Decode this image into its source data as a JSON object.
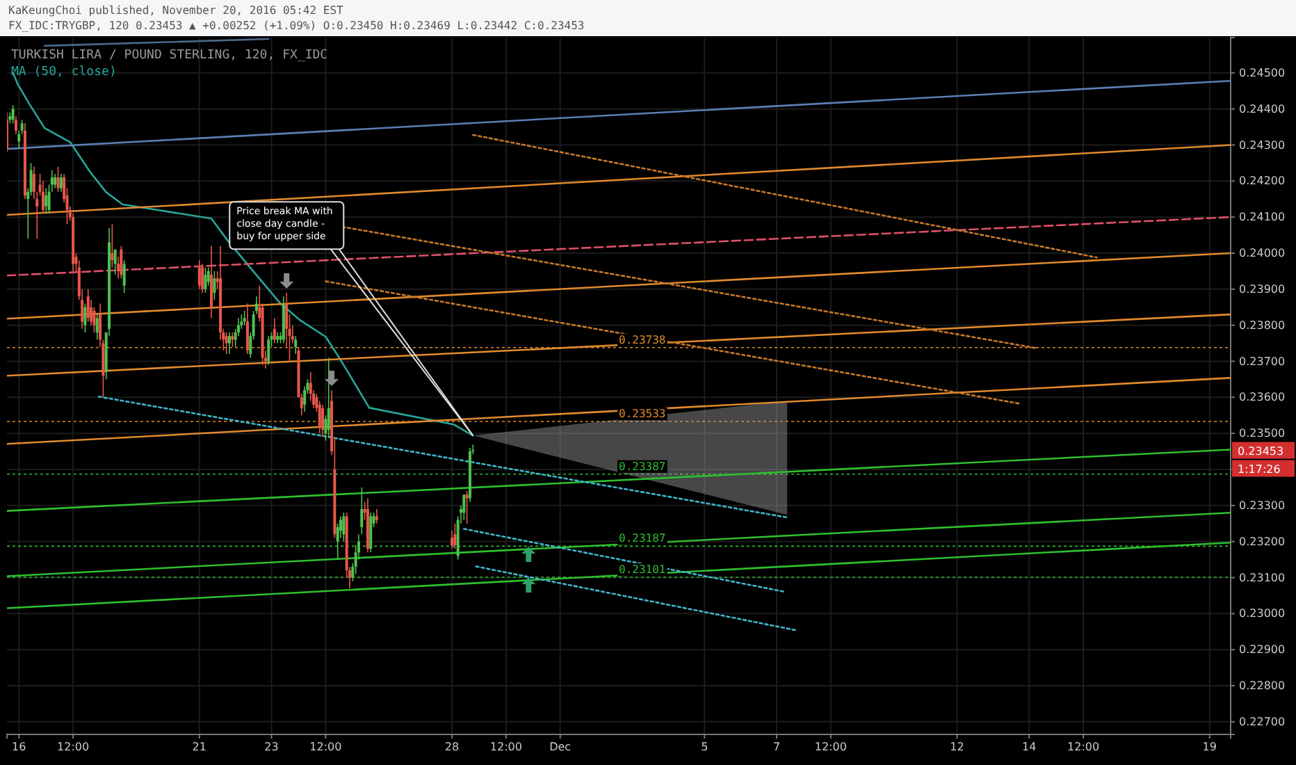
{
  "chart_data": {
    "type": "candlestick",
    "title": "TURKISH LIRA / POUND STERLING, 120, FX_IDC",
    "annotations": [
      "KaKeungChoi published, November 20, 2016 05:42 EST",
      "FX_IDC:TRYGBP, 120 0.23453 ▲ +0.00252 (+1.09%) O:0.23450 H:0.23469 L:0.23442 C:0.23453",
      {
        "text": "Price break MA with close day candle - buy for upper side",
        "x": "2016-11-28T14:00",
        "y": 0.23494
      },
      "0.23453",
      "1:17:26"
    ],
    "x": [
      "2016-11-15T16:00",
      "2016-11-15T18:00",
      "2016-11-15T20:00",
      "2016-11-15T22:00",
      "2016-11-16T00:00",
      "2016-11-16T02:00",
      "2016-11-16T04:00",
      "2016-11-16T06:00",
      "2016-11-16T08:00",
      "2016-11-16T10:00",
      "2016-11-16T12:00",
      "2016-11-16T14:00",
      "2016-11-16T16:00",
      "2016-11-16T18:00",
      "2016-11-16T20:00",
      "2016-11-16T22:00",
      "2016-11-17T00:00",
      "2016-11-17T02:00",
      "2016-11-17T04:00",
      "2016-11-17T06:00",
      "2016-11-17T08:00",
      "2016-11-17T10:00",
      "2016-11-17T12:00",
      "2016-11-17T14:00",
      "2016-11-17T16:00",
      "2016-11-17T18:00",
      "2016-11-17T20:00",
      "2016-11-17T22:00",
      "2016-11-18T00:00",
      "2016-11-18T02:00",
      "2016-11-18T04:00",
      "2016-11-18T06:00",
      "2016-11-18T08:00",
      "2016-11-18T10:00",
      "2016-11-18T12:00",
      "2016-11-18T14:00",
      "2016-11-18T16:00",
      "2016-11-18T18:00",
      "2016-11-18T20:00",
      "2016-11-18T22:00",
      "2016-11-21T00:00",
      "2016-11-21T02:00",
      "2016-11-21T04:00",
      "2016-11-21T06:00",
      "2016-11-21T08:00",
      "2016-11-21T10:00",
      "2016-11-21T12:00",
      "2016-11-21T14:00",
      "2016-11-21T16:00",
      "2016-11-21T18:00",
      "2016-11-21T20:00",
      "2016-11-21T22:00",
      "2016-11-22T00:00",
      "2016-11-22T02:00",
      "2016-11-22T04:00",
      "2016-11-22T06:00",
      "2016-11-22T08:00",
      "2016-11-22T10:00",
      "2016-11-22T12:00",
      "2016-11-22T14:00",
      "2016-11-22T16:00",
      "2016-11-22T18:00",
      "2016-11-22T20:00",
      "2016-11-22T22:00",
      "2016-11-23T00:00",
      "2016-11-23T02:00",
      "2016-11-23T04:00",
      "2016-11-23T06:00",
      "2016-11-23T08:00",
      "2016-11-23T10:00",
      "2016-11-23T12:00",
      "2016-11-23T14:00",
      "2016-11-23T16:00",
      "2016-11-23T18:00",
      "2016-11-23T20:00",
      "2016-11-23T22:00",
      "2016-11-24T00:00",
      "2016-11-24T02:00",
      "2016-11-24T04:00",
      "2016-11-24T06:00",
      "2016-11-24T08:00",
      "2016-11-24T10:00",
      "2016-11-24T12:00",
      "2016-11-24T14:00",
      "2016-11-24T16:00",
      "2016-11-24T18:00",
      "2016-11-24T20:00",
      "2016-11-24T22:00",
      "2016-11-25T00:00",
      "2016-11-25T02:00",
      "2016-11-25T04:00",
      "2016-11-25T06:00",
      "2016-11-25T08:00",
      "2016-11-25T10:00",
      "2016-11-25T12:00",
      "2016-11-25T14:00",
      "2016-11-25T16:00",
      "2016-11-25T18:00",
      "2016-11-25T20:00",
      "2016-11-25T22:00",
      "2016-11-28T00:00",
      "2016-11-28T02:00",
      "2016-11-28T04:00",
      "2016-11-28T06:00",
      "2016-11-28T08:00",
      "2016-11-28T10:00",
      "2016-11-28T12:00",
      "2016-11-28T14:00"
    ],
    "ohlc": [
      [
        0.2437,
        0.2439,
        0.2428,
        0.2429
      ],
      [
        0.2437,
        0.2439,
        0.2436,
        0.2438
      ],
      [
        0.2437,
        0.2441,
        0.2436,
        0.244
      ],
      [
        0.2437,
        0.2438,
        0.2433,
        0.2434
      ],
      [
        0.2431,
        0.2434,
        0.2429,
        0.2433
      ],
      [
        0.2434,
        0.2437,
        0.2433,
        0.2436
      ],
      [
        0.2434,
        0.2436,
        0.2415,
        0.2416
      ],
      [
        0.2415,
        0.2418,
        0.2404,
        0.2417
      ],
      [
        0.2417,
        0.2425,
        0.2416,
        0.2423
      ],
      [
        0.2422,
        0.2424,
        0.2415,
        0.2417
      ],
      [
        0.2415,
        0.2417,
        0.2404,
        0.2413
      ],
      [
        0.2419,
        0.2422,
        0.2416,
        0.2417
      ],
      [
        0.2417,
        0.242,
        0.2411,
        0.2412
      ],
      [
        0.2413,
        0.2418,
        0.2411,
        0.2416
      ],
      [
        0.2412,
        0.2419,
        0.2411,
        0.2417
      ],
      [
        0.2419,
        0.2423,
        0.2417,
        0.2421
      ],
      [
        0.2419,
        0.2422,
        0.2418,
        0.2421
      ],
      [
        0.2421,
        0.2424,
        0.2417,
        0.2418
      ],
      [
        0.2418,
        0.2422,
        0.2417,
        0.2421
      ],
      [
        0.2421,
        0.2422,
        0.2414,
        0.2415
      ],
      [
        0.2416,
        0.2418,
        0.2408,
        0.2412
      ],
      [
        0.2412,
        0.2413,
        0.2409,
        0.241
      ],
      [
        0.241,
        0.2411,
        0.2395,
        0.2397
      ],
      [
        0.2399,
        0.24,
        0.2395,
        0.2397
      ],
      [
        0.2396,
        0.2398,
        0.2387,
        0.2388
      ],
      [
        0.2387,
        0.239,
        0.2379,
        0.2381
      ],
      [
        0.238,
        0.2386,
        0.2378,
        0.2385
      ],
      [
        0.2388,
        0.239,
        0.2381,
        0.2382
      ],
      [
        0.2385,
        0.2387,
        0.238,
        0.2381
      ],
      [
        0.2384,
        0.2385,
        0.2378,
        0.238
      ],
      [
        0.2378,
        0.2383,
        0.2376,
        0.2382
      ],
      [
        0.2383,
        0.2386,
        0.2374,
        0.2376
      ],
      [
        0.2375,
        0.2376,
        0.236,
        0.2366
      ],
      [
        0.2367,
        0.2378,
        0.2365,
        0.2378
      ],
      [
        0.2379,
        0.2407,
        0.2377,
        0.2403
      ],
      [
        0.24,
        0.2408,
        0.2396,
        0.2398
      ],
      [
        0.2397,
        0.2401,
        0.2394,
        0.2401
      ],
      [
        0.2397,
        0.2399,
        0.2393,
        0.2395
      ],
      [
        0.2401,
        0.2402,
        0.2393,
        0.2394
      ],
      [
        0.2391,
        0.2398,
        0.2389,
        0.2397
      ],
      [
        0.2396,
        0.2398,
        0.239,
        0.2391
      ],
      [
        0.2396,
        0.2397,
        0.2389,
        0.239
      ],
      [
        0.239,
        0.2396,
        0.2389,
        0.2394
      ],
      [
        0.2392,
        0.2396,
        0.2391,
        0.2395
      ],
      [
        0.2394,
        0.2402,
        0.2382,
        0.2385
      ],
      [
        0.2389,
        0.2395,
        0.2387,
        0.2393
      ],
      [
        0.2393,
        0.2395,
        0.239,
        0.2392
      ],
      [
        0.2393,
        0.2402,
        0.2376,
        0.2378
      ],
      [
        0.2378,
        0.2379,
        0.2373,
        0.2376
      ],
      [
        0.2377,
        0.2378,
        0.2372,
        0.2375
      ],
      [
        0.2375,
        0.2378,
        0.2372,
        0.2377
      ],
      [
        0.2377,
        0.2378,
        0.2374,
        0.2376
      ],
      [
        0.2376,
        0.2379,
        0.2374,
        0.2378
      ],
      [
        0.2378,
        0.2382,
        0.2377,
        0.238
      ],
      [
        0.238,
        0.2383,
        0.2379,
        0.2381
      ],
      [
        0.2381,
        0.2384,
        0.238,
        0.2382
      ],
      [
        0.2381,
        0.2386,
        0.2372,
        0.2373
      ],
      [
        0.2372,
        0.2378,
        0.2371,
        0.2377
      ],
      [
        0.2377,
        0.2384,
        0.2376,
        0.2383
      ],
      [
        0.2384,
        0.2388,
        0.2383,
        0.2386
      ],
      [
        0.2385,
        0.2391,
        0.2381,
        0.2382
      ],
      [
        0.2385,
        0.2386,
        0.2369,
        0.2371
      ],
      [
        0.2371,
        0.2373,
        0.2368,
        0.237
      ],
      [
        0.237,
        0.2377,
        0.2369,
        0.2376
      ],
      [
        0.2376,
        0.2378,
        0.2374,
        0.2377
      ],
      [
        0.2379,
        0.2382,
        0.2375,
        0.2376
      ],
      [
        0.2376,
        0.2378,
        0.2375,
        0.2377
      ],
      [
        0.2376,
        0.2378,
        0.2375,
        0.2377
      ],
      [
        0.2376,
        0.2388,
        0.2375,
        0.2386
      ],
      [
        0.2386,
        0.2389,
        0.2374,
        0.2379
      ],
      [
        0.2379,
        0.2383,
        0.237,
        0.2377
      ],
      [
        0.2377,
        0.238,
        0.2375,
        0.2376
      ],
      [
        0.2374,
        0.2377,
        0.2372,
        0.2376
      ],
      [
        0.2373,
        0.2374,
        0.236,
        0.236
      ],
      [
        0.236,
        0.2361,
        0.2355,
        0.2357
      ],
      [
        0.2358,
        0.2363,
        0.2356,
        0.2362
      ],
      [
        0.2362,
        0.2365,
        0.2361,
        0.2364
      ],
      [
        0.2364,
        0.2367,
        0.2359,
        0.2361
      ],
      [
        0.2361,
        0.2362,
        0.2357,
        0.2358
      ],
      [
        0.236,
        0.2361,
        0.2356,
        0.2357
      ],
      [
        0.2358,
        0.2359,
        0.235,
        0.2352
      ],
      [
        0.2357,
        0.2358,
        0.2349,
        0.2351
      ],
      [
        0.235,
        0.2355,
        0.2348,
        0.2354
      ],
      [
        0.2351,
        0.2371,
        0.2349,
        0.2357
      ],
      [
        0.2359,
        0.2362,
        0.2344,
        0.2345
      ],
      [
        0.234,
        0.2349,
        0.2321,
        0.2322
      ],
      [
        0.232,
        0.2325,
        0.2315,
        0.2324
      ],
      [
        0.2323,
        0.2327,
        0.2321,
        0.2326
      ],
      [
        0.2322,
        0.2328,
        0.232,
        0.2327
      ],
      [
        0.2327,
        0.2328,
        0.231,
        0.2312
      ],
      [
        0.2312,
        0.2313,
        0.2307,
        0.231
      ],
      [
        0.231,
        0.2314,
        0.2309,
        0.2313
      ],
      [
        0.2313,
        0.2319,
        0.2311,
        0.2317
      ],
      [
        0.2317,
        0.2322,
        0.2315,
        0.232
      ],
      [
        0.2324,
        0.2335,
        0.2322,
        0.2329
      ],
      [
        0.2329,
        0.2331,
        0.2326,
        0.2328
      ],
      [
        0.2329,
        0.2332,
        0.2317,
        0.2318
      ],
      [
        0.2318,
        0.2328,
        0.2317,
        0.2327
      ],
      [
        0.2325,
        0.2328,
        0.2324,
        0.2327
      ],
      [
        0.2327,
        0.2329,
        0.2325,
        0.2326
      ],
      [
        0.2321,
        0.2323,
        0.2318,
        0.2319
      ],
      [
        0.2322,
        0.2325,
        0.2318,
        0.2319
      ],
      [
        0.2316,
        0.2327,
        0.2315,
        0.2326
      ],
      [
        0.2328,
        0.233,
        0.2325,
        0.2329
      ],
      [
        0.2328,
        0.2333,
        0.2326,
        0.2333
      ],
      [
        0.2333,
        0.2334,
        0.2325,
        0.2332
      ],
      [
        0.2332,
        0.2346,
        0.2331,
        0.2345
      ],
      [
        0.2345,
        0.23469,
        0.23442,
        0.23453
      ]
    ],
    "series": [
      {
        "name": "MA (50, close)",
        "type": "line",
        "color": "#26a69a",
        "x": [
          "2016-11-15T20:00",
          "2016-11-15T23:00",
          "2016-11-16T07:00",
          "2016-11-16T17:00",
          "2016-11-17T10:00",
          "2016-11-17T23:00",
          "2016-11-18T10:00",
          "2016-11-18T21:00",
          "2016-11-21T08:00",
          "2016-11-21T19:00",
          "2016-11-22T08:00",
          "2016-11-23T06:00",
          "2016-11-23T19:00",
          "2016-11-24T12:00",
          "2016-11-24T21:00",
          "2016-11-25T06:00",
          "2016-11-25T17:00",
          "2016-11-28T01:00",
          "2016-11-28T14:00"
        ],
        "values": [
          0.24501,
          0.2447,
          0.24413,
          0.24347,
          0.24308,
          0.24227,
          0.24169,
          0.24135,
          0.24096,
          0.24034,
          0.23969,
          0.2386,
          0.23814,
          0.23768,
          0.2371,
          0.23648,
          0.23571,
          0.23525,
          0.23494
        ]
      },
      {
        "type": "line",
        "color": "#9e9e9e",
        "x": [
          "2016-11-28T14:00",
          "2016-12-07T07:00"
        ],
        "values": [
          null,
          null
        ],
        "lower": [
          0.23494,
          0.23274
        ],
        "upper": [
          0.23494,
          0.2359
        ]
      },
      {
        "type": "line",
        "color": "#5b7fb5",
        "x": [
          "2016-11-15T16:00",
          "2016-12-19T14:00"
        ],
        "values": [
          0.24289,
          0.24478
        ]
      },
      {
        "type": "line",
        "color": "#4a6a8a",
        "x": [
          "2016-11-16T17:00",
          "2016-11-22T22:00"
        ],
        "values": [
          0.24575,
          0.24594
        ]
      },
      {
        "type": "line",
        "color": "#e08a2c",
        "x": [
          "2016-11-15T16:00",
          "2016-12-19T14:00"
        ],
        "values": [
          0.24106,
          0.243
        ]
      },
      {
        "type": "line",
        "color": "#e0506a",
        "line_style": "dashed",
        "x": [
          "2016-11-15T16:00",
          "2016-12-19T14:00"
        ],
        "values": [
          0.23938,
          0.241
        ]
      },
      {
        "type": "line",
        "color": "#e08a2c",
        "x": [
          "2016-11-15T16:00",
          "2016-12-19T14:00"
        ],
        "values": [
          0.23818,
          0.24
        ]
      },
      {
        "type": "line",
        "color": "#e08a2c",
        "x": [
          "2016-11-15T16:00",
          "2016-12-19T14:00"
        ],
        "values": [
          0.2366,
          0.2383
        ]
      },
      {
        "type": "line",
        "color": "#e08a2c",
        "x": [
          "2016-11-15T16:00",
          "2016-12-19T14:00"
        ],
        "values": [
          0.23471,
          0.23654
        ]
      },
      {
        "type": "line",
        "color": "#c8792a",
        "line_style": "dotted",
        "x": [
          "2016-11-28T14:00",
          "2016-12-15T21:00"
        ],
        "values": [
          0.24328,
          0.23988
        ]
      },
      {
        "type": "line",
        "color": "#c8792a",
        "line_style": "dotted",
        "x": [
          "2016-11-24T23:00",
          "2016-12-14T04:00"
        ],
        "values": [
          0.24073,
          0.23737
        ]
      },
      {
        "type": "line",
        "color": "#c8792a",
        "line_style": "dotted",
        "x": [
          "2016-11-24T12:00",
          "2016-12-13T17:00"
        ],
        "values": [
          0.23922,
          0.23583
        ]
      },
      {
        "type": "line",
        "color": "#2ec02e",
        "x": [
          "2016-11-15T16:00",
          "2016-12-19T14:00"
        ],
        "values": [
          0.23285,
          0.23455
        ]
      },
      {
        "type": "line",
        "color": "#2ec02e",
        "x": [
          "2016-11-15T16:00",
          "2016-12-19T14:00"
        ],
        "values": [
          0.23104,
          0.2328
        ]
      },
      {
        "type": "line",
        "color": "#2ec02e",
        "x": [
          "2016-11-15T16:00",
          "2016-12-19T14:00"
        ],
        "values": [
          0.23015,
          0.23197
        ]
      },
      {
        "type": "line",
        "color": "#3fb8c8",
        "line_style": "dotted",
        "x": [
          "2016-11-18T05:00",
          "2016-12-07T08:00"
        ],
        "values": [
          0.23602,
          0.23266
        ]
      },
      {
        "type": "line",
        "color": "#3fb8c8",
        "line_style": "dotted",
        "x": [
          "2016-11-28T08:00",
          "2016-12-07T05:00"
        ],
        "values": [
          0.23235,
          0.23061
        ]
      },
      {
        "type": "line",
        "color": "#3fb8c8",
        "line_style": "dotted",
        "x": [
          "2016-11-28T16:00",
          "2016-12-07T14:00"
        ],
        "values": [
          0.23131,
          0.22953
        ]
      }
    ],
    "ref_lines": [
      {
        "axis": "y",
        "value": 0.23738,
        "label": "0.23738",
        "color": "#e08a2c"
      },
      {
        "axis": "y",
        "value": 0.23533,
        "label": "0.23533",
        "color": "#e08a2c"
      },
      {
        "axis": "y",
        "value": 0.23387,
        "label": "0.23387",
        "color": "#2ec02e"
      },
      {
        "axis": "y",
        "value": 0.23187,
        "label": "0.23187",
        "color": "#2ec02e"
      },
      {
        "axis": "y",
        "value": 0.23101,
        "label": "0.23101",
        "color": "#2ec02e"
      }
    ],
    "xlim": [
      "2016-11-15T16:00",
      "2016-12-19T14:00"
    ],
    "xticks": [
      {
        "value": "2016-11-16",
        "label": "16"
      },
      {
        "value": "2016-11-17T12:00",
        "label": "12:00"
      },
      {
        "value": "2016-11-21",
        "label": "21"
      },
      {
        "value": "2016-11-23",
        "label": "23"
      },
      {
        "value": "2016-11-24T12:00",
        "label": "12:00"
      },
      {
        "value": "2016-11-28",
        "label": "28"
      },
      {
        "value": "2016-11-29T12:00",
        "label": "12:00"
      },
      {
        "value": "2016-12-01",
        "label": "Dec"
      },
      {
        "value": "2016-12-05",
        "label": "5"
      },
      {
        "value": "2016-12-07",
        "label": "7"
      },
      {
        "value": "2016-12-08T12:00",
        "label": "12:00"
      },
      {
        "value": "2016-12-12",
        "label": "12"
      },
      {
        "value": "2016-12-14",
        "label": "14"
      },
      {
        "value": "2016-12-15T12:00",
        "label": "12:00"
      },
      {
        "value": "2016-12-19",
        "label": "19"
      }
    ],
    "ylim": [
      0.22665,
      0.24598
    ],
    "yticks": [
      {
        "value": 0.227,
        "label": "0.22700"
      },
      {
        "value": 0.228,
        "label": "0.22800"
      },
      {
        "value": 0.229,
        "label": "0.22900"
      },
      {
        "value": 0.23,
        "label": "0.23000"
      },
      {
        "value": 0.231,
        "label": "0.23100"
      },
      {
        "value": 0.232,
        "label": "0.23200"
      },
      {
        "value": 0.233,
        "label": "0.23300"
      },
      {
        "value": 0.234,
        "label": null
      },
      {
        "value": 0.235,
        "label": "0.23500"
      },
      {
        "value": 0.236,
        "label": "0.23600"
      },
      {
        "value": 0.237,
        "label": "0.23700"
      },
      {
        "value": 0.238,
        "label": "0.23800"
      },
      {
        "value": 0.239,
        "label": "0.23900"
      },
      {
        "value": 0.24,
        "label": "0.24000"
      },
      {
        "value": 0.241,
        "label": "0.24100"
      },
      {
        "value": 0.242,
        "label": "0.24200"
      },
      {
        "value": 0.243,
        "label": "0.24300"
      },
      {
        "value": 0.244,
        "label": "0.24400"
      },
      {
        "value": 0.245,
        "label": "0.24500"
      }
    ],
    "grid": true,
    "legend": "top left"
  }
}
